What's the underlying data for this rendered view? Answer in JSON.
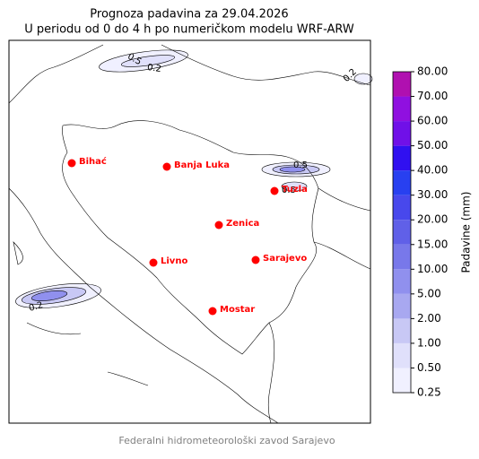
{
  "map": {
    "title": "Prognoza padavina za 29.04.2026",
    "subtitle": "U periodu od 0 do 4 h po numeričkom modelu WRF-ARW",
    "cities": [
      "Bihać",
      "Banja Luka",
      "Tuzla",
      "Zenica",
      "Livno",
      "Sarajevo",
      "Mostar"
    ],
    "contour_labels": [
      "0.5",
      "0.2",
      "0.2",
      "0.5",
      "0.5",
      "0.2"
    ],
    "colorbar": {
      "label": "Padavine (mm)",
      "ticks": [
        {
          "value": 0.25,
          "label": "0.25"
        },
        {
          "value": 0.5,
          "label": "0.50"
        },
        {
          "value": 1,
          "label": "1.00"
        },
        {
          "value": 2,
          "label": "2.00"
        },
        {
          "value": 5,
          "label": "5.00"
        },
        {
          "value": 10,
          "label": "10.00"
        },
        {
          "value": 15,
          "label": "15.00"
        },
        {
          "value": 20,
          "label": "20.00"
        },
        {
          "value": 30,
          "label": "30.00"
        },
        {
          "value": 40,
          "label": "40.00"
        },
        {
          "value": 50,
          "label": "50.00"
        },
        {
          "value": 60,
          "label": "60.00"
        },
        {
          "value": 70,
          "label": "70.00"
        },
        {
          "value": 80,
          "label": "80.00"
        }
      ],
      "colors": [
        "#f0f0ff",
        "#e0e0fb",
        "#c8c8f5",
        "#a8a8f0",
        "#9090ee",
        "#7878ea",
        "#6060e8",
        "#4848ec",
        "#2840f0",
        "#3010f0",
        "#7010e8",
        "#9010e0",
        "#b010b0"
      ]
    },
    "footer": "Federalni hidrometeorološki zavod Sarajevo"
  }
}
